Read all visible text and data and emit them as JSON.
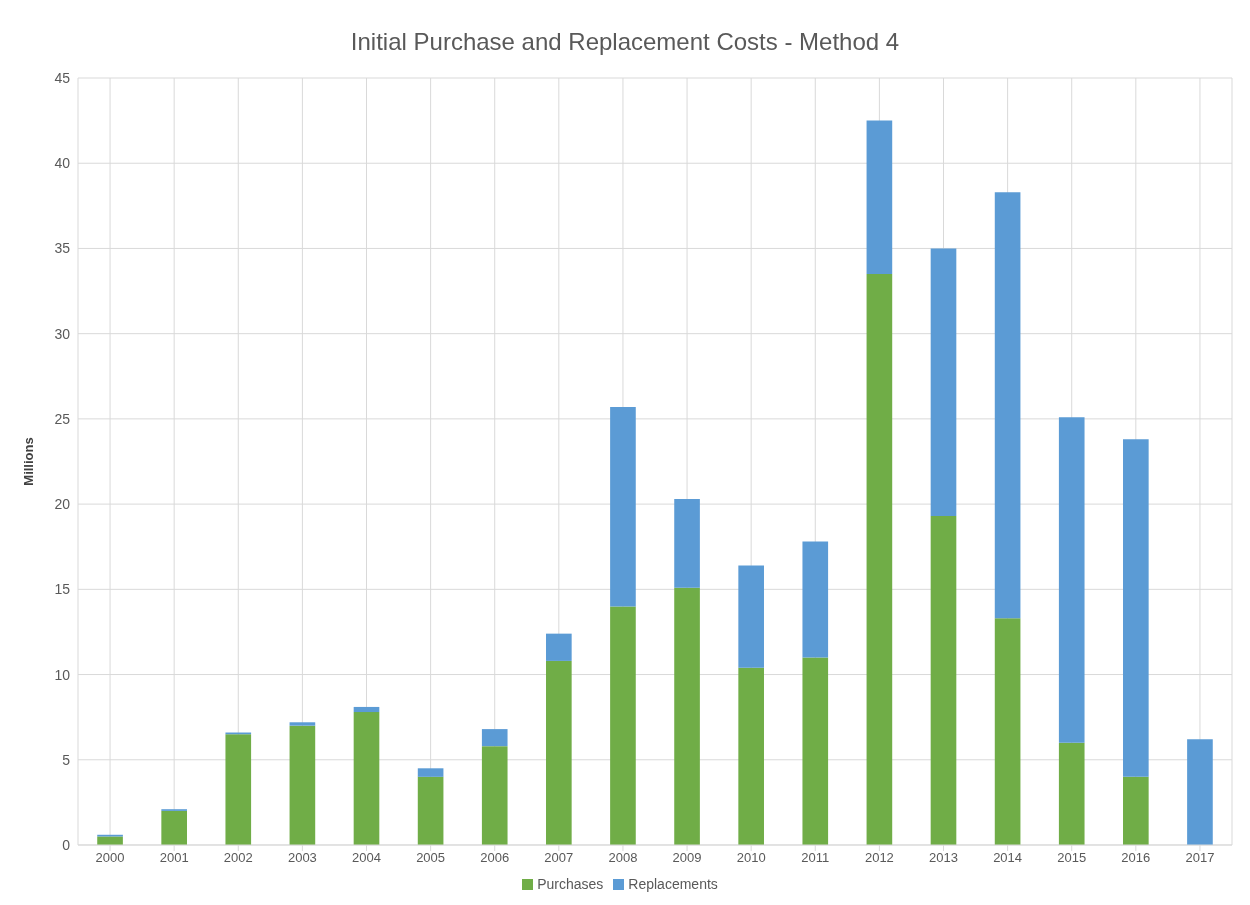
{
  "chart_data": {
    "type": "bar",
    "title": "Initial Purchase and Replacement Costs - Method 4",
    "ylabel": "Millions",
    "categories": [
      "2000",
      "2001",
      "2002",
      "2003",
      "2004",
      "2005",
      "2006",
      "2007",
      "2008",
      "2009",
      "2010",
      "2011",
      "2012",
      "2013",
      "2014",
      "2015",
      "2016",
      "2017"
    ],
    "series": [
      {
        "name": "Purchases",
        "color": "#70ad47",
        "values": [
          0.5,
          2.0,
          6.5,
          7.0,
          7.8,
          4.0,
          5.8,
          10.8,
          14.0,
          15.1,
          10.4,
          11.0,
          33.5,
          19.3,
          13.3,
          6.0,
          4.0,
          0
        ]
      },
      {
        "name": "Replacements",
        "color": "#5b9bd5",
        "values": [
          0.1,
          0.1,
          0.1,
          0.2,
          0.3,
          0.5,
          1.0,
          1.6,
          11.7,
          5.2,
          6.0,
          6.8,
          9.0,
          15.7,
          25.0,
          19.1,
          19.8,
          6.2
        ]
      }
    ],
    "stacked": true,
    "ylim": [
      0,
      45
    ],
    "yticks": [
      0,
      5,
      10,
      15,
      20,
      25,
      30,
      35,
      40,
      45
    ],
    "grid": true,
    "legend": "bottom"
  }
}
